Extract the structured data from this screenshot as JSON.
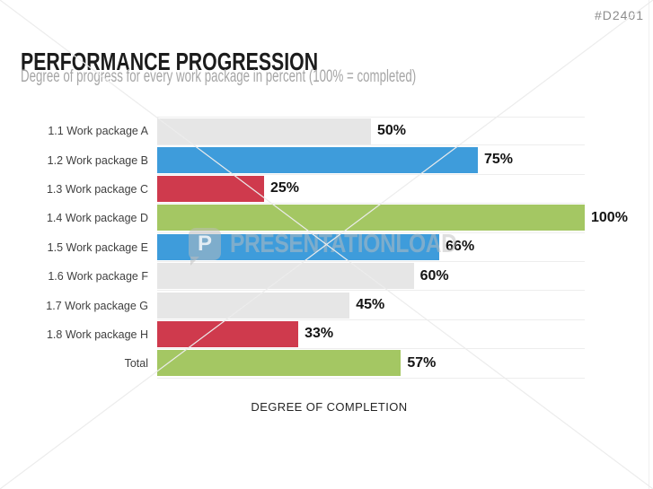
{
  "page": {
    "doc_code": "#D2401",
    "title": "PERFORMANCE PROGRESSION",
    "subtitle": "Degree of progress for every work package in percent (100% = completed)",
    "watermark": {
      "logo_letter": "P",
      "text": "PRESENTATIONLOAD"
    }
  },
  "chart_data": {
    "type": "bar",
    "orientation": "horizontal",
    "title": "PERFORMANCE PROGRESSION",
    "xlabel": "DEGREE OF COMPLETION",
    "ylabel": "",
    "xlim": [
      0,
      100
    ],
    "legend": "none",
    "grid": "light horizontal row separators only",
    "categories": [
      "1.1 Work package A",
      "1.2 Work package B",
      "1.3 Work package C",
      "1.4 Work package D",
      "1.5 Work package E",
      "1.6 Work package F",
      "1.7 Work package G",
      "1.8 Work package H",
      "Total"
    ],
    "values": [
      50,
      75,
      25,
      100,
      66,
      60,
      45,
      33,
      57
    ],
    "value_labels": [
      "50%",
      "75%",
      "25%",
      "100%",
      "66%",
      "60%",
      "45%",
      "33%",
      "57%"
    ],
    "bar_colors": [
      "#E6E6E6",
      "#3E9CDB",
      "#CF3A4D",
      "#A4C763",
      "#3E9CDB",
      "#E6E6E6",
      "#E6E6E6",
      "#CF3A4D",
      "#A4C763"
    ]
  },
  "colors": {
    "blue": "#3E9CDB",
    "red": "#CF3A4D",
    "green": "#A4C763",
    "neutral_gray": "#E6E6E6",
    "separator": "#EDEDED",
    "title_text": "#1C1C1C",
    "subtitle_text": "#A6A6A6",
    "doc_code_text": "#8C8C8C"
  }
}
